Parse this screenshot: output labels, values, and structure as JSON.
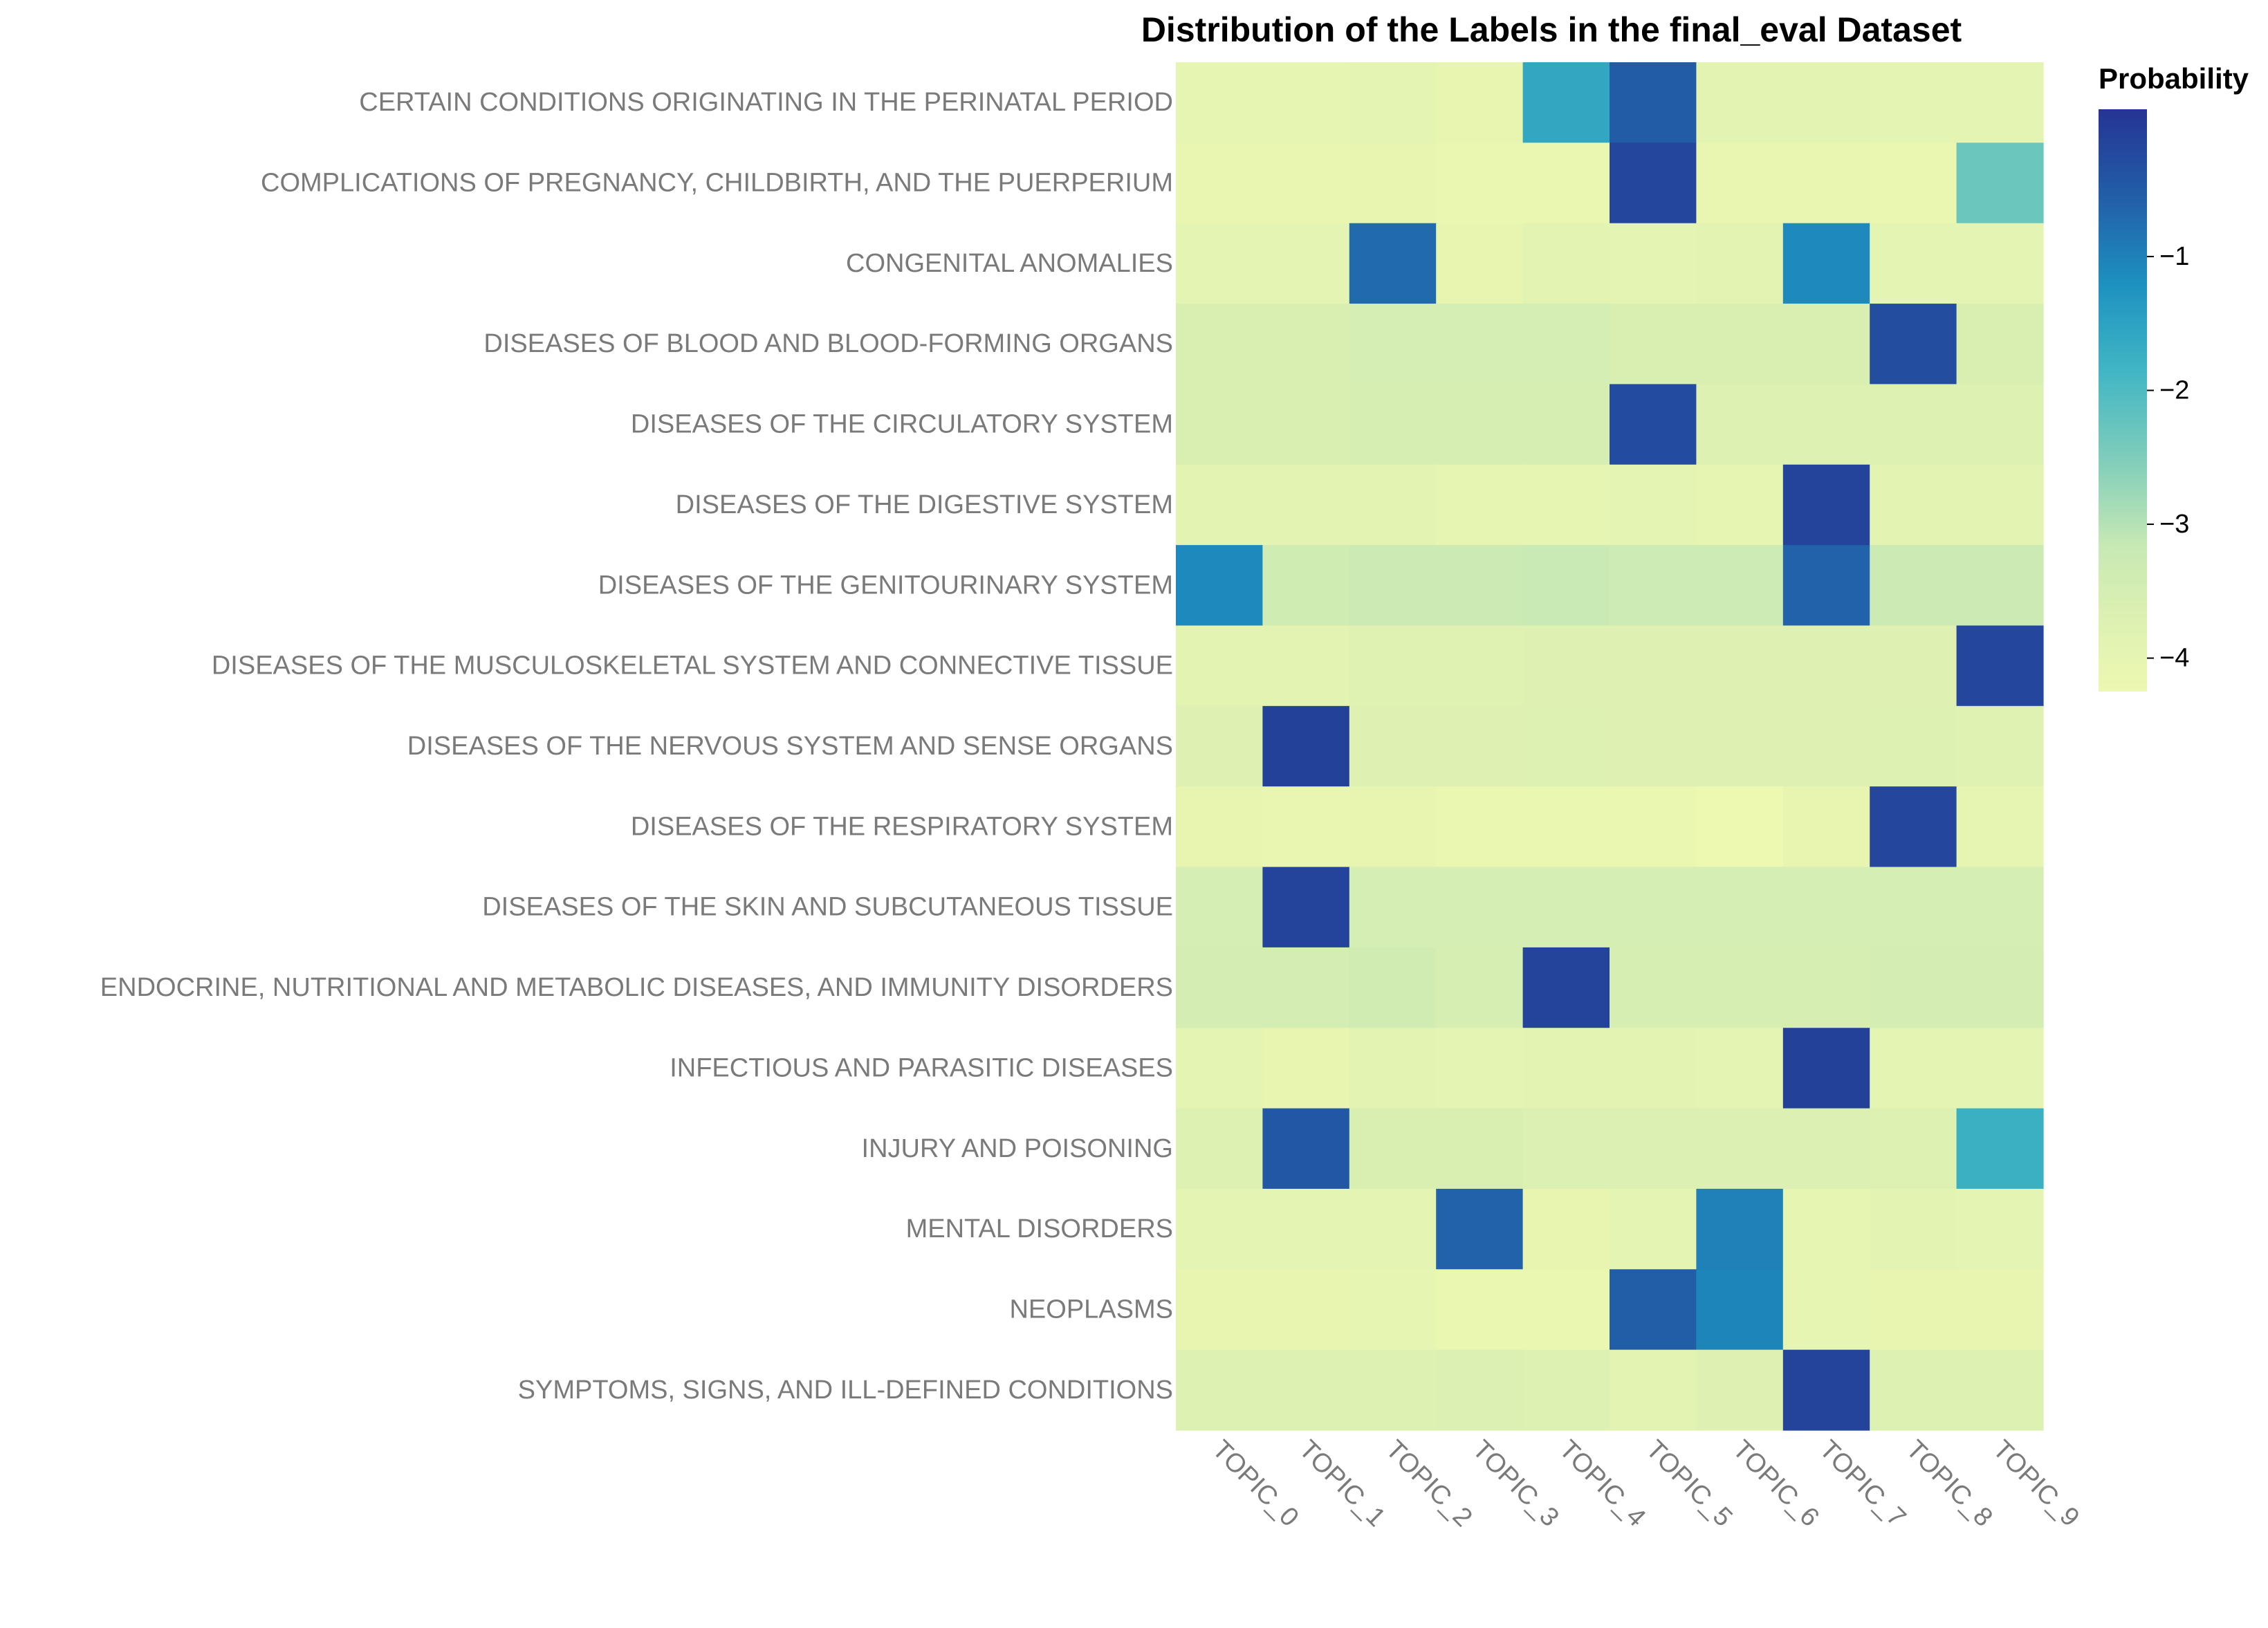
{
  "chart_data": {
    "type": "heatmap",
    "title": "Distribution of the Labels in the final_eval Dataset",
    "xlabel": "",
    "ylabel": "",
    "x": [
      "TOPIC_0",
      "TOPIC_1",
      "TOPIC_2",
      "TOPIC_3",
      "TOPIC_4",
      "TOPIC_5",
      "TOPIC_6",
      "TOPIC_7",
      "TOPIC_8",
      "TOPIC_9"
    ],
    "y": [
      "CERTAIN CONDITIONS ORIGINATING IN THE PERINATAL PERIOD",
      "COMPLICATIONS OF PREGNANCY, CHILDBIRTH, AND THE PUERPERIUM",
      "CONGENITAL ANOMALIES",
      "DISEASES OF BLOOD AND BLOOD-FORMING ORGANS",
      "DISEASES OF THE CIRCULATORY SYSTEM",
      "DISEASES OF THE DIGESTIVE SYSTEM",
      "DISEASES OF THE GENITOURINARY SYSTEM",
      "DISEASES OF THE MUSCULOSKELETAL SYSTEM AND CONNECTIVE TISSUE",
      "DISEASES OF THE NERVOUS SYSTEM AND SENSE ORGANS",
      "DISEASES OF THE RESPIRATORY SYSTEM",
      "DISEASES OF THE SKIN AND SUBCUTANEOUS TISSUE",
      "ENDOCRINE, NUTRITIONAL AND METABOLIC DISEASES, AND IMMUNITY DISORDERS",
      "INFECTIOUS AND PARASITIC DISEASES",
      "INJURY AND POISONING",
      "MENTAL DISORDERS",
      "NEOPLASMS",
      "SYMPTOMS, SIGNS, AND ILL-DEFINED CONDITIONS"
    ],
    "values": [
      [
        -4.0,
        -4.0,
        -3.95,
        -4.05,
        -1.6,
        -0.5,
        -3.9,
        -3.9,
        -3.95,
        -3.95
      ],
      [
        -4.1,
        -4.1,
        -4.05,
        -4.15,
        -4.15,
        -0.2,
        -4.1,
        -4.1,
        -4.15,
        -2.3
      ],
      [
        -3.95,
        -3.95,
        -0.7,
        -4.05,
        -3.9,
        -3.95,
        -3.9,
        -1.1,
        -3.95,
        -3.95
      ],
      [
        -3.6,
        -3.6,
        -3.5,
        -3.5,
        -3.5,
        -3.6,
        -3.6,
        -3.6,
        -0.3,
        -3.6
      ],
      [
        -3.6,
        -3.6,
        -3.55,
        -3.55,
        -3.55,
        -0.25,
        -3.7,
        -3.7,
        -3.7,
        -3.7
      ],
      [
        -3.9,
        -3.9,
        -3.85,
        -4.0,
        -4.0,
        -3.95,
        -4.0,
        -0.15,
        -3.9,
        -3.9
      ],
      [
        -1.1,
        -3.35,
        -3.25,
        -3.25,
        -3.2,
        -3.3,
        -3.3,
        -0.6,
        -3.25,
        -3.25
      ],
      [
        -3.85,
        -3.85,
        -3.8,
        -3.8,
        -3.75,
        -3.75,
        -3.75,
        -3.75,
        -3.75,
        -0.2
      ],
      [
        -3.75,
        -0.1,
        -3.75,
        -3.75,
        -3.7,
        -3.75,
        -3.75,
        -3.75,
        -3.7,
        -3.8
      ],
      [
        -4.05,
        -4.1,
        -4.05,
        -4.15,
        -4.15,
        -4.15,
        -4.25,
        -4.05,
        -0.2,
        -4.0
      ],
      [
        -3.5,
        -0.15,
        -3.5,
        -3.5,
        -3.5,
        -3.5,
        -3.5,
        -3.5,
        -3.5,
        -3.5
      ],
      [
        -3.45,
        -3.45,
        -3.4,
        -3.55,
        -0.15,
        -3.55,
        -3.55,
        -3.55,
        -3.45,
        -3.45
      ],
      [
        -3.95,
        -4.05,
        -3.9,
        -3.95,
        -3.9,
        -3.9,
        -3.95,
        -0.1,
        -3.95,
        -3.95
      ],
      [
        -3.7,
        -0.45,
        -3.6,
        -3.6,
        -3.65,
        -3.65,
        -3.65,
        -3.65,
        -3.7,
        -1.75
      ],
      [
        -3.95,
        -3.95,
        -3.95,
        -0.6,
        -4.05,
        -3.95,
        -1.0,
        -4.0,
        -3.9,
        -3.95
      ],
      [
        -4.05,
        -4.05,
        -4.0,
        -4.15,
        -4.15,
        -0.55,
        -1.05,
        -4.0,
        -4.05,
        -4.05
      ],
      [
        -3.7,
        -3.7,
        -3.7,
        -3.65,
        -3.7,
        -3.85,
        -3.75,
        -0.15,
        -3.7,
        -3.7
      ]
    ],
    "colorscale": "YlGnBu",
    "zlim": [
      -4.25,
      0.1
    ],
    "legend": {
      "title": "Probability",
      "ticks": [
        -1,
        -2,
        -3,
        -4
      ],
      "tick_labels": [
        "−1",
        "−2",
        "−3",
        "−4"
      ],
      "placement": "right"
    }
  }
}
